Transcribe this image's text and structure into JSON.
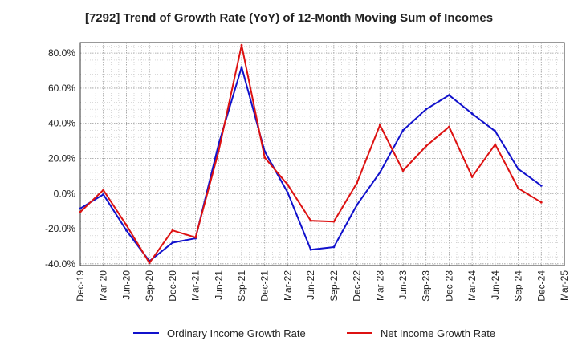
{
  "chart_data": {
    "type": "line",
    "title": "[7292]  Trend of Growth Rate (YoY) of 12-Month Moving Sum of Incomes",
    "x": [
      "Dec-19",
      "Mar-20",
      "Jun-20",
      "Sep-20",
      "Dec-20",
      "Mar-21",
      "Jun-21",
      "Sep-21",
      "Dec-21",
      "Mar-22",
      "Jun-22",
      "Sep-22",
      "Dec-22",
      "Mar-23",
      "Jun-23",
      "Sep-23",
      "Dec-23",
      "Mar-24",
      "Jun-24",
      "Sep-24",
      "Dec-24",
      "Mar-25"
    ],
    "y_ticks": [
      "80.0%",
      "60.0%",
      "40.0%",
      "20.0%",
      "0.0%",
      "-20.0%",
      "-40.0%"
    ],
    "y_tick_values": [
      80,
      60,
      40,
      20,
      0,
      -20,
      -40
    ],
    "ylim": [
      -41,
      86
    ],
    "grid": true,
    "legend_position": "bottom",
    "series": [
      {
        "name": "Ordinary Income Growth Rate",
        "color": "#1111cc",
        "values": [
          -8.5,
          -0.5,
          -21,
          -38.5,
          -28,
          -25.5,
          28,
          72,
          24,
          0.5,
          -32,
          -30.5,
          -6.5,
          12,
          36,
          48,
          56,
          45.5,
          35.5,
          14,
          4.5,
          null
        ]
      },
      {
        "name": "Net Income Growth Rate",
        "color": "#dd1111",
        "values": [
          -10.5,
          2,
          -18,
          -39.5,
          -21,
          -25,
          24,
          84.5,
          20.5,
          5,
          -15.5,
          -16,
          6,
          39,
          13,
          27,
          38,
          9.5,
          28,
          3,
          -5,
          null
        ]
      }
    ]
  }
}
